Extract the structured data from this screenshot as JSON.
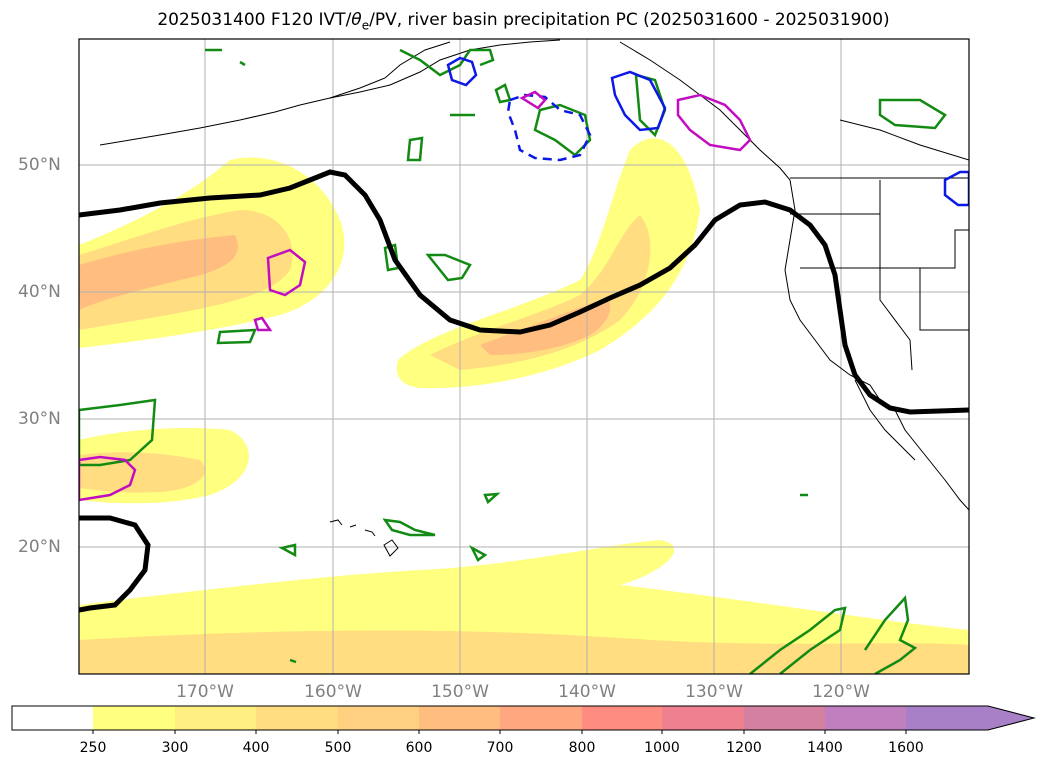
{
  "title": {
    "prefix": "2025031400 F120 IVT/",
    "theta": "θ",
    "theta_sub": "e",
    "suffix": "/PV, river basin precipitation PC (2025031600 - 2025031900)"
  },
  "lat_labels": [
    "50°N",
    "40°N",
    "30°N",
    "20°N"
  ],
  "lon_labels": [
    "170°W",
    "160°W",
    "150°W",
    "140°W",
    "130°W",
    "120°W"
  ],
  "colorbar": {
    "ticks": [
      "250",
      "300",
      "400",
      "500",
      "600",
      "700",
      "800",
      "1000",
      "1200",
      "1400",
      "1600"
    ],
    "colors": [
      "#ffffff",
      "#ffff80",
      "#ffee80",
      "#ffdd80",
      "#ffd080",
      "#ffbe80",
      "#ffa880",
      "#fe8c80",
      "#ee8090",
      "#d480a0",
      "#c080c0",
      "#a880c8"
    ]
  },
  "colors": {
    "jet_contour": "#000000",
    "green_contour": "#138a13",
    "blue_contour": "#0b18e6",
    "magenta_contour": "#c20dc2",
    "coastline": "#000000",
    "gridline": "#b0b0b0",
    "tick_label": "#808080"
  }
}
